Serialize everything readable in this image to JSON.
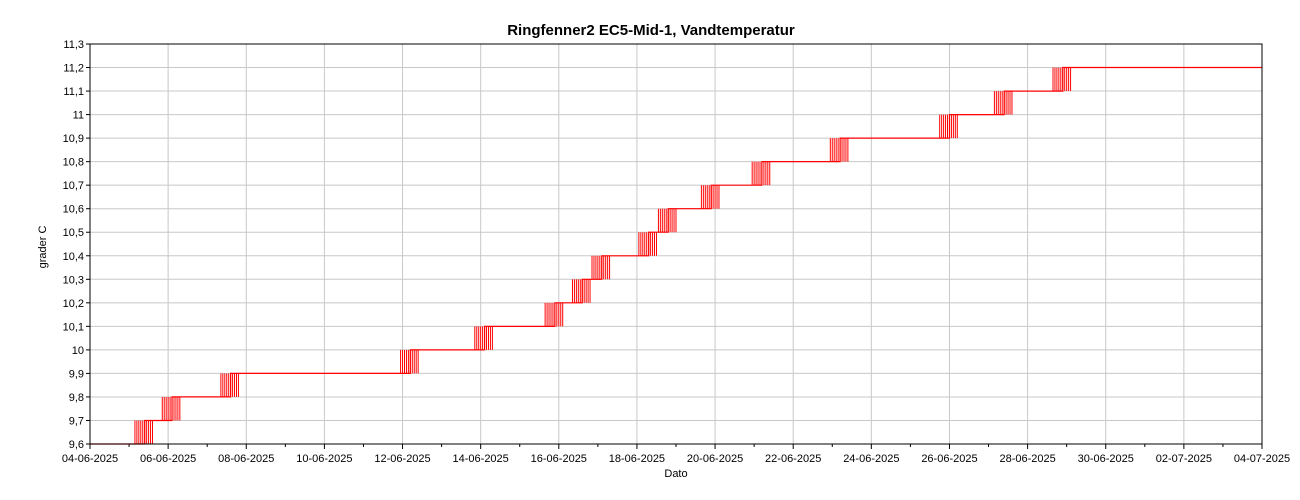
{
  "chart_data": {
    "type": "line",
    "title": "Ringfenner2 EC5-Mid-1, Vandtemperatur",
    "xlabel": "Dato",
    "ylabel": "grader C",
    "x_ticks": [
      "04-06-2025",
      "06-06-2025",
      "08-06-2025",
      "10-06-2025",
      "12-06-2025",
      "14-06-2025",
      "16-06-2025",
      "18-06-2025",
      "20-06-2025",
      "22-06-2025",
      "24-06-2025",
      "26-06-2025",
      "28-06-2025",
      "30-06-2025",
      "02-07-2025",
      "04-07-2025"
    ],
    "y_ticks": [
      "9,6",
      "9,7",
      "9,8",
      "9,9",
      "10",
      "10,1",
      "10,2",
      "10,3",
      "10,4",
      "10,5",
      "10,6",
      "10,7",
      "10,8",
      "10,9",
      "11",
      "11,1",
      "11,2",
      "11,3"
    ],
    "ylim": [
      9.6,
      11.3
    ],
    "xlim": [
      "04-06-2025",
      "04-07-2025"
    ],
    "grid": true,
    "colors": {
      "series": "#ff0000",
      "grid": "#c8c8c8",
      "axis": "#000000"
    },
    "series": [
      {
        "x_unit": "days since 04-06-2025",
        "x": [
          0.0,
          1.3,
          1.4,
          1.55,
          2.1,
          2.2,
          3.3,
          3.6,
          4.5,
          5.0,
          5.3,
          8.2,
          8.6,
          9.2,
          10.1,
          11.0,
          11.9,
          12.6,
          13.1,
          13.9,
          14.3,
          14.8,
          15.1,
          15.9,
          16.6,
          17.2,
          17.9,
          19.2,
          19.5,
          20.0,
          22.0,
          22.6,
          23.0,
          23.4,
          24.0,
          24.5,
          24.9,
          25.8,
          26.5,
          27.0,
          28.0,
          28.5,
          29.3,
          30.0
        ],
        "y": [
          9.6,
          9.6,
          9.7,
          9.7,
          9.8,
          9.8,
          9.8,
          9.9,
          9.9,
          9.9,
          9.9,
          10.0,
          10.0,
          10.0,
          10.1,
          10.1,
          10.2,
          10.3,
          10.4,
          10.4,
          10.5,
          10.6,
          10.6,
          10.7,
          10.7,
          10.8,
          10.8,
          10.9,
          10.9,
          10.9,
          11.0,
          11.0,
          11.0,
          11.1,
          11.1,
          11.1,
          11.2,
          11.2,
          11.2,
          11.2,
          11.2,
          11.2,
          11.2,
          11.2
        ]
      }
    ]
  }
}
